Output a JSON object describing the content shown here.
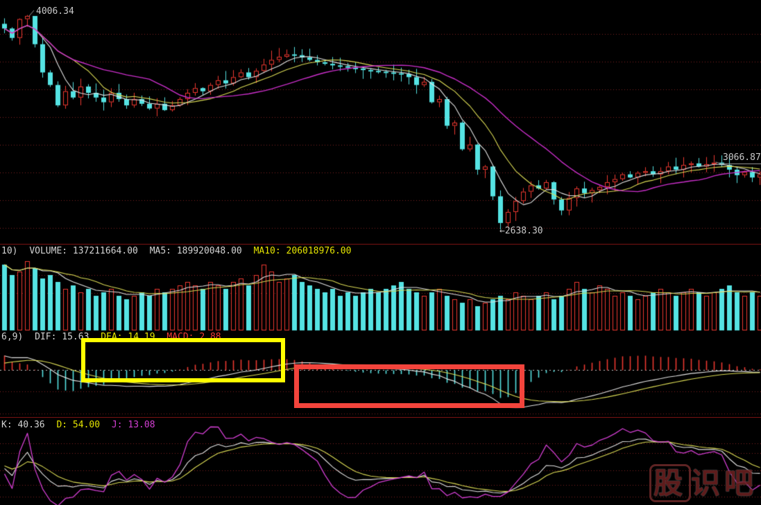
{
  "price_labels": {
    "peak": "4006.34",
    "trough": "2638.30",
    "recent_high": "3066.87"
  },
  "headers": {
    "volume": {
      "prefix": "10)",
      "volume": "VOLUME: 137211664.00",
      "ma5": "MA5: 189920048.00",
      "ma10": "MA10: 206018976.00"
    },
    "macd": {
      "prefix": "6,9)",
      "dif": "DIF: 15.63",
      "dea": "DEA: 14.19",
      "macd": "MACD: 2.88"
    },
    "kdj": {
      "k": "K: 40.36",
      "d": "D: 54.00",
      "j": "J: 13.08"
    }
  },
  "watermark": {
    "char_boxed": "股",
    "chars_rest": "识吧"
  },
  "annotations": {
    "yellow_box_color": "#ffff00",
    "red_box_color": "#f3443c"
  },
  "chart_data": {
    "type": "candlestick",
    "title": "",
    "panels": [
      "price+MA(5,10,20)",
      "volume+MA(5,10)",
      "MACD(12,26,9)",
      "KDJ(9,3,3)"
    ],
    "grid": "red-dotted-horizontal",
    "y_range": [
      2600,
      4040
    ],
    "peak_index": 3,
    "peak_value": 4006.34,
    "trough_index": 65,
    "trough_value": 2638.3,
    "recent_high_index": 93,
    "recent_high_value": 3066.87,
    "closes": [
      3920,
      3860,
      3980,
      4000,
      3820,
      3640,
      3560,
      3430,
      3520,
      3480,
      3550,
      3510,
      3480,
      3450,
      3510,
      3470,
      3430,
      3470,
      3440,
      3410,
      3440,
      3400,
      3430,
      3470,
      3510,
      3540,
      3520,
      3560,
      3590,
      3570,
      3610,
      3640,
      3610,
      3650,
      3690,
      3720,
      3740,
      3755,
      3750,
      3735,
      3720,
      3705,
      3695,
      3685,
      3680,
      3670,
      3665,
      3655,
      3650,
      3645,
      3640,
      3635,
      3630,
      3610,
      3560,
      3580,
      3450,
      3470,
      3300,
      3320,
      3150,
      3180,
      3020,
      3040,
      2850,
      2680,
      2750,
      2820,
      2880,
      2920,
      2900,
      2940,
      2830,
      2760,
      2840,
      2900,
      2870,
      2890,
      2910,
      2940,
      2960,
      2990,
      2970,
      3000,
      3010,
      2990,
      3010,
      3040,
      3020,
      3050,
      3060,
      3040,
      3055,
      3065,
      3050,
      3020,
      2985,
      3005,
      2970,
      2990
    ],
    "volumes_norm": [
      0.95,
      0.8,
      0.85,
      1.0,
      0.9,
      0.75,
      0.8,
      0.7,
      0.6,
      0.65,
      0.55,
      0.6,
      0.5,
      0.55,
      0.6,
      0.5,
      0.45,
      0.5,
      0.55,
      0.5,
      0.6,
      0.55,
      0.6,
      0.65,
      0.7,
      0.65,
      0.6,
      0.7,
      0.65,
      0.6,
      0.7,
      0.75,
      0.65,
      0.8,
      0.95,
      0.85,
      0.7,
      0.75,
      0.8,
      0.7,
      0.65,
      0.6,
      0.55,
      0.6,
      0.5,
      0.55,
      0.5,
      0.55,
      0.6,
      0.55,
      0.6,
      0.65,
      0.7,
      0.6,
      0.55,
      0.5,
      0.55,
      0.6,
      0.5,
      0.45,
      0.4,
      0.45,
      0.35,
      0.4,
      0.45,
      0.5,
      0.45,
      0.55,
      0.5,
      0.45,
      0.5,
      0.55,
      0.45,
      0.5,
      0.6,
      0.7,
      0.6,
      0.55,
      0.65,
      0.6,
      0.5,
      0.55,
      0.5,
      0.45,
      0.5,
      0.55,
      0.6,
      0.55,
      0.5,
      0.55,
      0.6,
      0.55,
      0.5,
      0.55,
      0.6,
      0.65,
      0.55,
      0.5,
      0.55,
      0.5
    ],
    "colors": {
      "up": "#ee3830",
      "down": "#55e3e3",
      "ma5": "#e4e4e4",
      "ma10": "#dcdc55",
      "ma20": "#cc2fcc",
      "dif": "#e4e4e4",
      "dea": "#dcdc55",
      "k": "#e4e4e4",
      "d": "#dcdc55",
      "j": "#d43fd4",
      "grid": "#802020",
      "zero_line": "#c8c8c8",
      "separator": "#7a1212",
      "pointer": "#9a9a9a",
      "label": "#c9c9c9"
    }
  }
}
